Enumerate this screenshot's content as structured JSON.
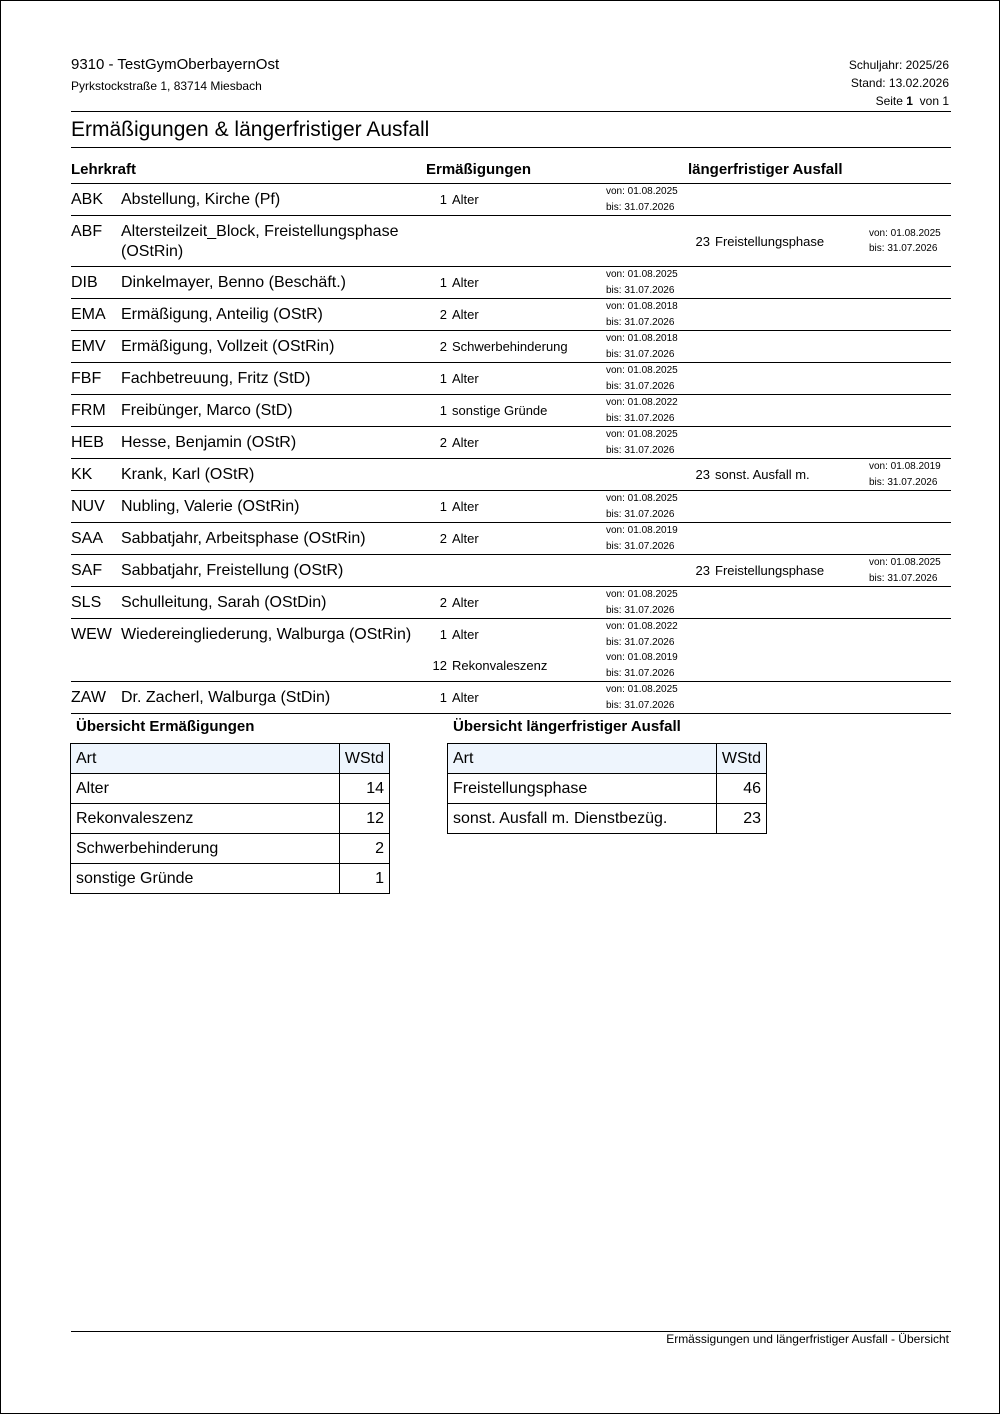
{
  "header": {
    "school": "9310 - TestGymOberbayernOst",
    "address": "Pyrkstockstraße 1, 83714 Miesbach",
    "schuljahr": "Schuljahr: 2025/26",
    "stand": "Stand: 13.02.2026",
    "seite_label": "Seite",
    "seite": "1",
    "von_label": "von 1"
  },
  "title": "Ermäßigungen & längerfristiger Ausfall",
  "columns": {
    "lehrkraft": "Lehrkraft",
    "erm": "Ermäßigungen",
    "ausfall": "längerfristiger Ausfall"
  },
  "rows": [
    {
      "code": "ABK",
      "name": "Abstellung, Kirche (Pf)",
      "erm": [
        {
          "num": "1",
          "label": "Alter",
          "von": "von: 01.08.2025",
          "bis": "bis: 31.07.2026"
        }
      ],
      "ausfall": []
    },
    {
      "code": "ABF",
      "name": "Altersteilzeit_Block, Freistellungsphase (OStRin)",
      "erm": [],
      "ausfall": [
        {
          "num": "23",
          "label": "Freistellungsphase",
          "von": "von: 01.08.2025",
          "bis": "bis: 31.07.2026"
        }
      ]
    },
    {
      "code": "DIB",
      "name": "Dinkelmayer, Benno (Beschäft.)",
      "erm": [
        {
          "num": "1",
          "label": "Alter",
          "von": "von: 01.08.2025",
          "bis": "bis: 31.07.2026"
        }
      ],
      "ausfall": []
    },
    {
      "code": "EMA",
      "name": "Ermäßigung, Anteilig (OStR)",
      "erm": [
        {
          "num": "2",
          "label": "Alter",
          "von": "von: 01.08.2018",
          "bis": "bis: 31.07.2026"
        }
      ],
      "ausfall": []
    },
    {
      "code": "EMV",
      "name": "Ermäßigung, Vollzeit (OStRin)",
      "erm": [
        {
          "num": "2",
          "label": "Schwerbehinderung",
          "von": "von: 01.08.2018",
          "bis": "bis: 31.07.2026"
        }
      ],
      "ausfall": []
    },
    {
      "code": "FBF",
      "name": "Fachbetreuung, Fritz (StD)",
      "erm": [
        {
          "num": "1",
          "label": "Alter",
          "von": "von: 01.08.2025",
          "bis": "bis: 31.07.2026"
        }
      ],
      "ausfall": []
    },
    {
      "code": "FRM",
      "name": "Freibünger, Marco (StD)",
      "erm": [
        {
          "num": "1",
          "label": "sonstige Gründe",
          "von": "von: 01.08.2022",
          "bis": "bis: 31.07.2026"
        }
      ],
      "ausfall": []
    },
    {
      "code": "HEB",
      "name": "Hesse, Benjamin (OStR)",
      "erm": [
        {
          "num": "2",
          "label": "Alter",
          "von": "von: 01.08.2025",
          "bis": "bis: 31.07.2026"
        }
      ],
      "ausfall": []
    },
    {
      "code": "KK",
      "name": "Krank, Karl (OStR)",
      "erm": [],
      "ausfall": [
        {
          "num": "23",
          "label": "sonst. Ausfall m.",
          "von": "von: 01.08.2019",
          "bis": "bis: 31.07.2026"
        }
      ]
    },
    {
      "code": "NUV",
      "name": "Nubling, Valerie (OStRin)",
      "erm": [
        {
          "num": "1",
          "label": "Alter",
          "von": "von: 01.08.2025",
          "bis": "bis: 31.07.2026"
        }
      ],
      "ausfall": []
    },
    {
      "code": "SAA",
      "name": "Sabbatjahr, Arbeitsphase (OStRin)",
      "erm": [
        {
          "num": "2",
          "label": "Alter",
          "von": "von: 01.08.2019",
          "bis": "bis: 31.07.2026"
        }
      ],
      "ausfall": []
    },
    {
      "code": "SAF",
      "name": "Sabbatjahr, Freistellung (OStR)",
      "erm": [],
      "ausfall": [
        {
          "num": "23",
          "label": "Freistellungsphase",
          "von": "von: 01.08.2025",
          "bis": "bis: 31.07.2026"
        }
      ]
    },
    {
      "code": "SLS",
      "name": "Schulleitung, Sarah (OStDin)",
      "erm": [
        {
          "num": "2",
          "label": "Alter",
          "von": "von: 01.08.2025",
          "bis": "bis: 31.07.2026"
        }
      ],
      "ausfall": []
    },
    {
      "code": "WEW",
      "name": "Wiedereingliederung, Walburga (OStRin)",
      "erm": [
        {
          "num": "1",
          "label": "Alter",
          "von": "von: 01.08.2022",
          "bis": "bis: 31.07.2026"
        },
        {
          "num": "12",
          "label": "Rekonvaleszenz",
          "von": "von: 01.08.2019",
          "bis": "bis: 31.07.2026"
        }
      ],
      "ausfall": []
    },
    {
      "code": "ZAW",
      "name": "Dr. Zacherl, Walburga (StDin)",
      "erm": [
        {
          "num": "1",
          "label": "Alter",
          "von": "von: 01.08.2025",
          "bis": "bis: 31.07.2026"
        }
      ],
      "ausfall": []
    }
  ],
  "summary_erm": {
    "title": "Übersicht Ermäßigungen",
    "col_art": "Art",
    "col_wstd": "WStd",
    "rows": [
      {
        "art": "Alter",
        "wstd": "14"
      },
      {
        "art": "Rekonvaleszenz",
        "wstd": "12"
      },
      {
        "art": "Schwerbehinderung",
        "wstd": "2"
      },
      {
        "art": "sonstige Gründe",
        "wstd": "1"
      }
    ]
  },
  "summary_ausfall": {
    "title": "Übersicht längerfristiger Ausfall",
    "col_art": "Art",
    "col_wstd": "WStd",
    "rows": [
      {
        "art": "Freistellungsphase",
        "wstd": "46"
      },
      {
        "art": "sonst. Ausfall m. Dienstbezüg.",
        "wstd": "23"
      }
    ]
  },
  "footer": "Ermässigungen und längerfristiger Ausfall - Übersicht"
}
